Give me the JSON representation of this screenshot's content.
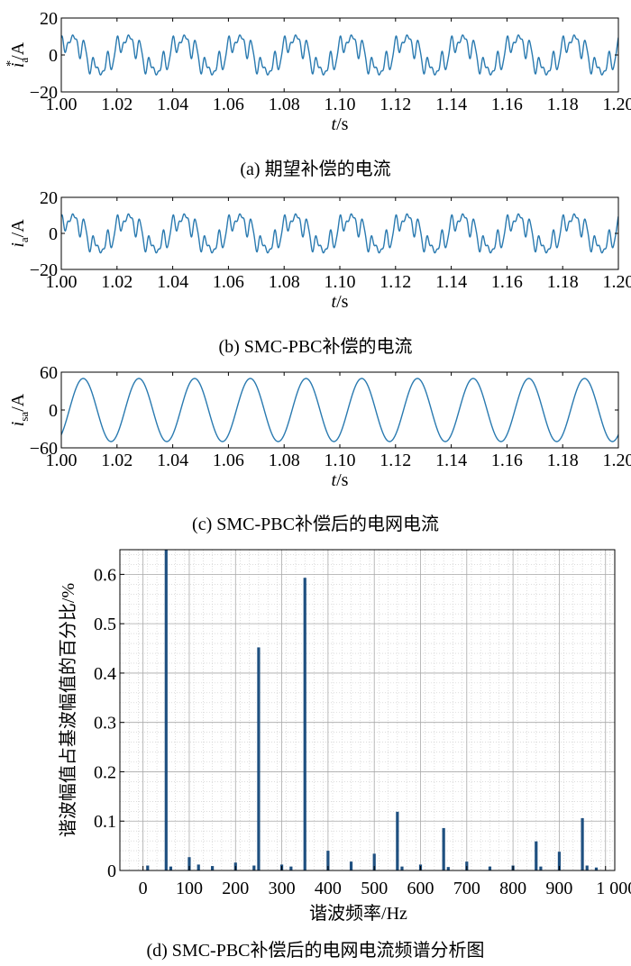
{
  "chart_data": [
    {
      "type": "line",
      "panel": "(a)",
      "caption": "(a) 期望补偿的电流",
      "ylabel_main": "i",
      "ylabel_sub": "a",
      "ylabel_sup": "*",
      "ylabel_unit": "/A",
      "xlabel_main": "t",
      "xlabel_unit": "/s",
      "xlim": [
        1.0,
        1.2
      ],
      "ylim": [
        -20,
        20
      ],
      "y_ticks": [
        "20",
        "0",
        "−20"
      ],
      "x_ticks": [
        "1.00",
        "1.02",
        "1.04",
        "1.06",
        "1.08",
        "1.10",
        "1.12",
        "1.14",
        "1.16",
        "1.18",
        "1.20"
      ],
      "series_color": "#2a7ab0",
      "waveform": "periodic harmonic current, period 0.02 s, peaks about ±15 A"
    },
    {
      "type": "line",
      "panel": "(b)",
      "caption": "(b) SMC-PBC补偿的电流",
      "ylabel_main": "i",
      "ylabel_sub": "a",
      "ylabel_unit": "/A",
      "xlabel_main": "t",
      "xlabel_unit": "/s",
      "xlim": [
        1.0,
        1.2
      ],
      "ylim": [
        -20,
        20
      ],
      "y_ticks": [
        "20",
        "0",
        "−20"
      ],
      "x_ticks": [
        "1.00",
        "1.02",
        "1.04",
        "1.06",
        "1.08",
        "1.10",
        "1.12",
        "1.14",
        "1.16",
        "1.18",
        "1.20"
      ],
      "series_color": "#2a7ab0",
      "waveform": "periodic harmonic current, period 0.02 s, peaks about ±15 A"
    },
    {
      "type": "line",
      "panel": "(c)",
      "caption": "(c)  SMC-PBC补偿后的电网电流",
      "ylabel_main": "i",
      "ylabel_sub": "sa",
      "ylabel_unit": "/A",
      "xlabel_main": "t",
      "xlabel_unit": "/s",
      "xlim": [
        1.0,
        1.2
      ],
      "ylim": [
        -60,
        60
      ],
      "y_ticks": [
        "60",
        "0",
        "−60"
      ],
      "x_ticks": [
        "1.00",
        "1.02",
        "1.04",
        "1.06",
        "1.08",
        "1.10",
        "1.12",
        "1.14",
        "1.16",
        "1.18",
        "1.20"
      ],
      "series_color": "#2a7ab0",
      "amplitude": 50,
      "frequency_hz": 50
    },
    {
      "type": "bar",
      "panel": "(d)",
      "caption": "(d) SMC-PBC补偿后的电网电流频谱分析图",
      "xlabel": "谐波频率/Hz",
      "ylabel": "谐波幅值占基波幅值的百分比/%",
      "xlim": [
        -50,
        1020
      ],
      "ylim": [
        0,
        0.65
      ],
      "x_ticks": [
        "0",
        "100",
        "200",
        "300",
        "400",
        "500",
        "600",
        "700",
        "800",
        "900",
        "1 000"
      ],
      "x_tick_values": [
        0,
        100,
        200,
        300,
        400,
        500,
        600,
        700,
        800,
        900,
        1000
      ],
      "y_ticks": [
        "0",
        "0.1",
        "0.2",
        "0.3",
        "0.4",
        "0.5",
        "0.6"
      ],
      "y_tick_values": [
        0,
        0.1,
        0.2,
        0.3,
        0.4,
        0.5,
        0.6
      ],
      "grid": true,
      "bar_color": "#1f5080",
      "bars": [
        {
          "x": 50,
          "y": 0.65,
          "clipped": true
        },
        {
          "x": 250,
          "y": 0.452
        },
        {
          "x": 350,
          "y": 0.593
        },
        {
          "x": 550,
          "y": 0.119
        },
        {
          "x": 650,
          "y": 0.086
        },
        {
          "x": 850,
          "y": 0.059
        },
        {
          "x": 950,
          "y": 0.106
        },
        {
          "x": 100,
          "y": 0.027
        },
        {
          "x": 400,
          "y": 0.04
        },
        {
          "x": 500,
          "y": 0.034
        },
        {
          "x": 900,
          "y": 0.038
        },
        {
          "x": 200,
          "y": 0.016
        },
        {
          "x": 450,
          "y": 0.018
        },
        {
          "x": 600,
          "y": 0.012
        },
        {
          "x": 700,
          "y": 0.018
        },
        {
          "x": 750,
          "y": 0.008
        },
        {
          "x": 800,
          "y": 0.01
        },
        {
          "x": 300,
          "y": 0.012
        },
        {
          "x": 150,
          "y": 0.009
        },
        {
          "x": 10,
          "y": 0.01
        },
        {
          "x": 60,
          "y": 0.008
        },
        {
          "x": 120,
          "y": 0.012
        },
        {
          "x": 240,
          "y": 0.01
        },
        {
          "x": 320,
          "y": 0.008
        },
        {
          "x": 560,
          "y": 0.008
        },
        {
          "x": 660,
          "y": 0.007
        },
        {
          "x": 860,
          "y": 0.008
        },
        {
          "x": 960,
          "y": 0.01
        },
        {
          "x": 980,
          "y": 0.006
        }
      ]
    }
  ]
}
